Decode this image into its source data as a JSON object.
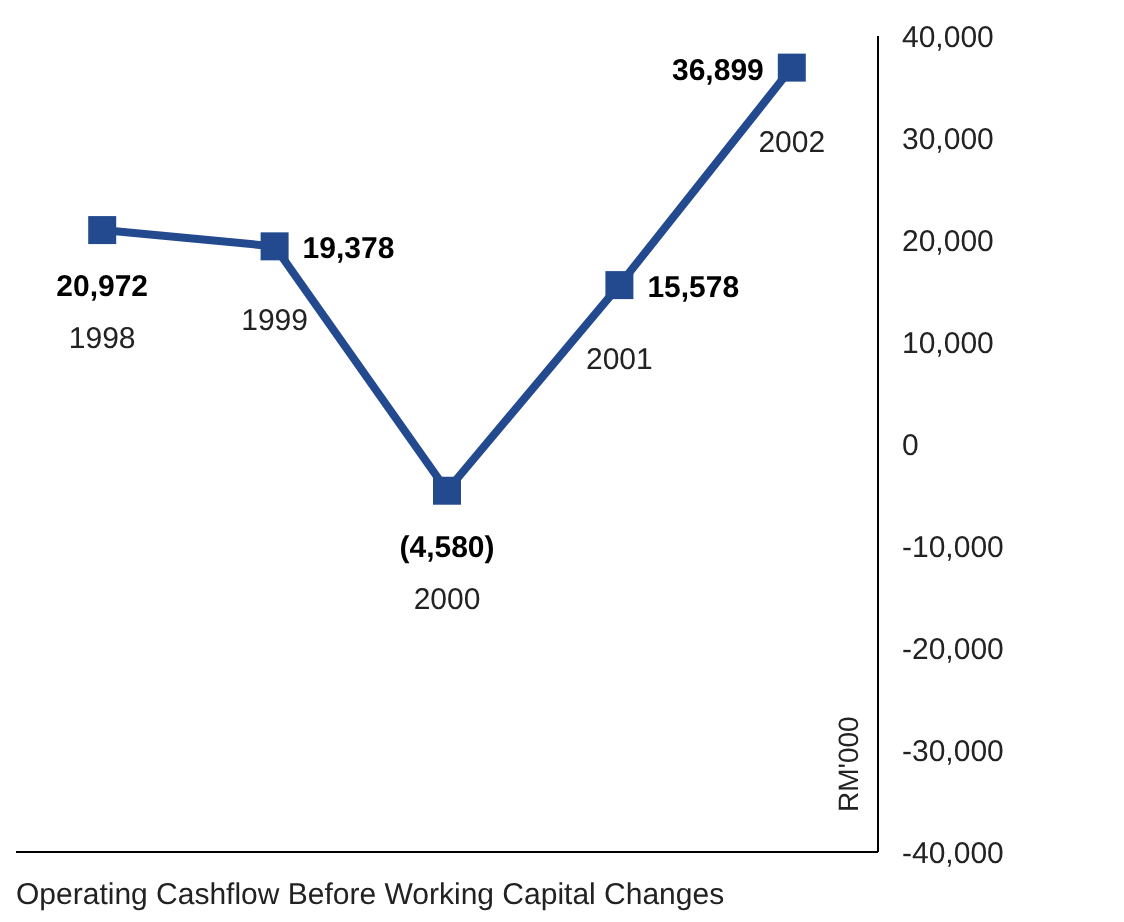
{
  "chart_data": {
    "type": "line",
    "title": "Operating Cashflow Before Working Capital Changes",
    "ylabel": "RM'000",
    "categories": [
      "1998",
      "1999",
      "2000",
      "2001",
      "2002"
    ],
    "series": [
      {
        "color": "#234a8e",
        "values": [
          20972,
          19378,
          -4580,
          15578,
          36899
        ],
        "value_labels": [
          "20,972",
          "19,378",
          "(4,580)",
          "15,578",
          "36,899"
        ]
      }
    ],
    "ylim": [
      -40000,
      40000
    ],
    "yticks": [
      {
        "value": -40000,
        "label": "-40,000"
      },
      {
        "value": -30000,
        "label": "-30,000"
      },
      {
        "value": -20000,
        "label": "-20,000"
      },
      {
        "value": -10000,
        "label": "-10,000"
      },
      {
        "value": 0,
        "label": "0"
      },
      {
        "value": 10000,
        "label": "10,000"
      },
      {
        "value": 20000,
        "label": "20,000"
      },
      {
        "value": 30000,
        "label": "30,000"
      },
      {
        "value": 40000,
        "label": "40,000"
      }
    ],
    "grid": false,
    "legend": false,
    "marker": "square",
    "line_style": "solid"
  }
}
